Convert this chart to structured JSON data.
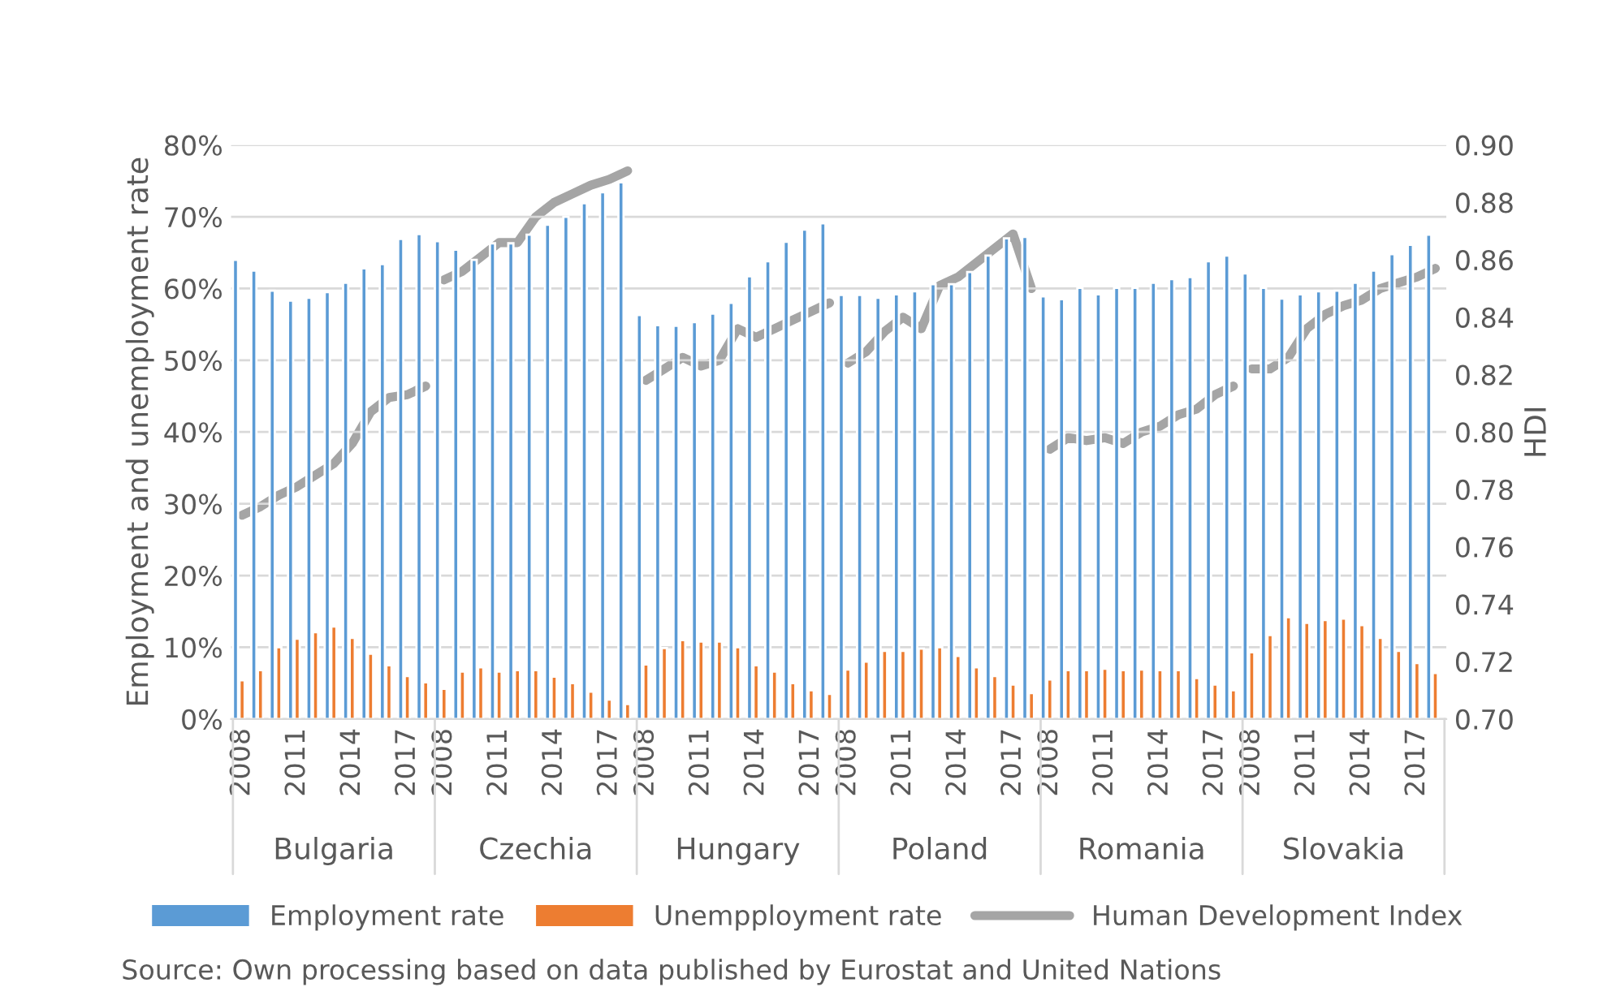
{
  "chart_data": {
    "type": "bar",
    "categories": [
      "2008",
      null,
      null,
      "2011",
      null,
      null,
      "2014",
      null,
      null,
      "2017",
      null,
      "2008",
      null,
      null,
      "2011",
      null,
      null,
      "2014",
      null,
      null,
      "2017",
      null,
      "2008",
      null,
      null,
      "2011",
      null,
      null,
      "2014",
      null,
      null,
      "2017",
      null,
      "2008",
      null,
      null,
      "2011",
      null,
      null,
      "2014",
      null,
      null,
      "2017",
      null,
      "2008",
      null,
      null,
      "2011",
      null,
      null,
      "2014",
      null,
      null,
      "2017",
      null,
      "2008",
      null,
      null,
      "2011",
      null,
      null,
      "2014",
      null,
      null,
      "2017",
      null
    ],
    "ylabel": "Employment and unemployment rate",
    "y2label": "HDI",
    "ylim": [
      0,
      80
    ],
    "yticks": [
      {
        "value": 0,
        "label": "0%"
      },
      {
        "value": 10,
        "label": "10%"
      },
      {
        "value": 20,
        "label": "20%"
      },
      {
        "value": 30,
        "label": "30%"
      },
      {
        "value": 40,
        "label": "40%"
      },
      {
        "value": 50,
        "label": "50%"
      },
      {
        "value": 60,
        "label": "60%"
      },
      {
        "value": 70,
        "label": "70%"
      },
      {
        "value": 80,
        "label": "80%"
      }
    ],
    "y2lim": [
      0.7,
      0.9
    ],
    "y2ticks": [
      {
        "value": 0.7,
        "label": "0.70"
      },
      {
        "value": 0.72,
        "label": "0.72"
      },
      {
        "value": 0.74,
        "label": "0.74"
      },
      {
        "value": 0.76,
        "label": "0.76"
      },
      {
        "value": 0.78,
        "label": "0.78"
      },
      {
        "value": 0.8,
        "label": "0.80"
      },
      {
        "value": 0.82,
        "label": "0.82"
      },
      {
        "value": 0.84,
        "label": "0.84"
      },
      {
        "value": 0.86,
        "label": "0.86"
      },
      {
        "value": 0.88,
        "label": "0.88"
      },
      {
        "value": 0.9,
        "label": "0.90"
      }
    ],
    "grid": "y",
    "legend": "bottom",
    "annotations": [
      "Bulgaria",
      "Czechia",
      "Hungary",
      "Poland",
      "Romania",
      "Slovakia",
      "Source: Own processing based on data published by Eurostat and United Nations"
    ],
    "series": [
      {
        "name": "Employment rate",
        "color": "#5b9bd5",
        "values": [
          64.0,
          62.5,
          59.7,
          58.3,
          58.7,
          59.5,
          60.8,
          62.8,
          63.4,
          66.9,
          67.6,
          66.6,
          65.4,
          64.0,
          66.3,
          66.3,
          67.5,
          68.9,
          70.0,
          71.9,
          73.4,
          74.8,
          56.3,
          54.9,
          54.8,
          55.3,
          56.5,
          58.0,
          61.7,
          63.8,
          66.5,
          68.2,
          69.1,
          59.1,
          59.1,
          58.7,
          59.2,
          59.6,
          60.6,
          60.6,
          62.3,
          64.6,
          67.0,
          67.2,
          58.9,
          58.5,
          60.1,
          59.2,
          60.1,
          60.1,
          60.8,
          61.3,
          61.6,
          63.8,
          64.6,
          62.1,
          60.1,
          58.6,
          59.2,
          59.6,
          59.7,
          60.8,
          62.5,
          64.8,
          66.1,
          67.5
        ]
      },
      {
        "name": "Unempployment rate",
        "color": "#ed7d31",
        "values": [
          5.4,
          6.8,
          10.0,
          11.2,
          12.1,
          12.9,
          11.3,
          9.1,
          7.5,
          6.0,
          5.1,
          4.2,
          6.6,
          7.2,
          6.6,
          6.8,
          6.8,
          5.9,
          5.0,
          3.8,
          2.7,
          2.1,
          7.6,
          9.9,
          11.0,
          10.8,
          10.8,
          10.0,
          7.5,
          6.6,
          5.0,
          4.0,
          3.5,
          6.9,
          8.0,
          9.5,
          9.5,
          9.8,
          10.0,
          8.8,
          7.2,
          6.0,
          4.8,
          3.6,
          5.5,
          6.8,
          6.8,
          7.0,
          6.8,
          6.9,
          6.8,
          6.8,
          5.7,
          4.8,
          4.0,
          9.3,
          11.7,
          14.2,
          13.4,
          13.8,
          14.0,
          13.1,
          11.3,
          9.5,
          7.8,
          6.4
        ]
      },
      {
        "name": "Human Development Index",
        "type": "line",
        "axis": "y2",
        "color": "#a5a5a5",
        "values": [
          0.771,
          0.774,
          0.778,
          0.781,
          0.785,
          0.789,
          0.796,
          0.807,
          0.812,
          0.813,
          0.816,
          0.853,
          0.856,
          0.861,
          0.866,
          0.866,
          0.875,
          0.88,
          0.883,
          0.886,
          0.888,
          0.891,
          0.818,
          0.822,
          0.826,
          0.823,
          0.825,
          0.836,
          0.833,
          0.836,
          0.839,
          0.842,
          0.845,
          0.824,
          0.828,
          0.835,
          0.84,
          0.836,
          0.851,
          0.854,
          0.859,
          0.864,
          0.869,
          0.85,
          0.794,
          0.798,
          0.797,
          0.798,
          0.796,
          0.8,
          0.802,
          0.806,
          0.808,
          0.813,
          0.816,
          0.822,
          0.822,
          0.826,
          0.836,
          0.841,
          0.844,
          0.846,
          0.85,
          0.852,
          0.854,
          0.857
        ]
      }
    ]
  }
}
